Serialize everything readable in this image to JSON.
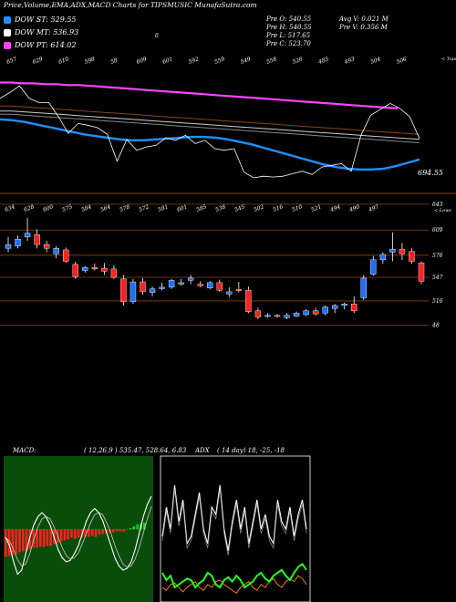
{
  "title": "Price,Volume,EMA,ADX,MACD Charts for TIPSMUSIC MunafaSutra.com",
  "legend": [
    {
      "label": "DOW ST: 529.55",
      "color": "#1e90ff"
    },
    {
      "label": "DOW MT: 536.93",
      "color": "#ffffff"
    },
    {
      "label": "DOW PT: 614.02",
      "color": "#ff44ff"
    }
  ],
  "ohlc_info": {
    "open": "Pre  O: 540.55",
    "high": "Pre  H: 540.55",
    "low": "Pre  L: 517.65",
    "close": "Pre  C: 523.70",
    "avg_volume": "Avg V: 0.021  M",
    "prev_volume": "Pre  V: 0.356  M"
  },
  "stray_mark": "6",
  "upper_labels": [
    "657",
    "629",
    "610",
    "598",
    "58",
    "609",
    "601",
    "592",
    "559",
    "549",
    "558",
    "526",
    "485",
    "493",
    "504",
    "506"
  ],
  "upper_right_label": "< Tops",
  "upper_price_tag": "694.55",
  "middle_labels": [
    "634",
    "628",
    "600",
    "575",
    "584",
    "564",
    "578",
    "572",
    "581",
    "601",
    "585",
    "538",
    "545",
    "502",
    "516",
    "510",
    "521",
    "494",
    "490",
    "497"
  ],
  "middle_right_label": "< Lows",
  "price_levels": [
    "643",
    "609",
    "576",
    "547",
    "516",
    "48"
  ],
  "macd": {
    "label": "MACD:",
    "params": "( 12,26,9 ) 535.47,  528.64,  6.83"
  },
  "adx": {
    "label": "ADX",
    "params": "( 14  day) 18,  -25,  -18"
  },
  "chart_data": {
    "type": "candlestick",
    "candles": [
      {
        "o": 585,
        "h": 600,
        "l": 580,
        "c": 590
      },
      {
        "o": 588,
        "h": 602,
        "l": 585,
        "c": 597
      },
      {
        "o": 600,
        "h": 625,
        "l": 595,
        "c": 605
      },
      {
        "o": 603,
        "h": 610,
        "l": 585,
        "c": 590
      },
      {
        "o": 590,
        "h": 595,
        "l": 580,
        "c": 585
      },
      {
        "o": 578,
        "h": 588,
        "l": 572,
        "c": 585
      },
      {
        "o": 583,
        "h": 586,
        "l": 566,
        "c": 568
      },
      {
        "o": 564,
        "h": 568,
        "l": 545,
        "c": 548
      },
      {
        "o": 556,
        "h": 562,
        "l": 553,
        "c": 560
      },
      {
        "o": 560,
        "h": 565,
        "l": 556,
        "c": 558
      },
      {
        "o": 559,
        "h": 566,
        "l": 550,
        "c": 555
      },
      {
        "o": 558,
        "h": 563,
        "l": 545,
        "c": 547
      },
      {
        "o": 545,
        "h": 550,
        "l": 510,
        "c": 515
      },
      {
        "o": 515,
        "h": 545,
        "l": 512,
        "c": 541
      },
      {
        "o": 541,
        "h": 546,
        "l": 524,
        "c": 528
      },
      {
        "o": 527,
        "h": 535,
        "l": 522,
        "c": 532
      },
      {
        "o": 532,
        "h": 540,
        "l": 530,
        "c": 534
      },
      {
        "o": 534,
        "h": 545,
        "l": 532,
        "c": 543
      },
      {
        "o": 538,
        "h": 545,
        "l": 536,
        "c": 540
      },
      {
        "o": 543,
        "h": 550,
        "l": 538,
        "c": 546
      },
      {
        "o": 538,
        "h": 542,
        "l": 534,
        "c": 536
      },
      {
        "o": 533,
        "h": 542,
        "l": 531,
        "c": 540
      },
      {
        "o": 540,
        "h": 544,
        "l": 528,
        "c": 530
      },
      {
        "o": 525,
        "h": 534,
        "l": 521,
        "c": 528
      },
      {
        "o": 531,
        "h": 541,
        "l": 527,
        "c": 530
      },
      {
        "o": 530,
        "h": 535,
        "l": 500,
        "c": 502
      },
      {
        "o": 503,
        "h": 507,
        "l": 492,
        "c": 495
      },
      {
        "o": 496,
        "h": 500,
        "l": 494,
        "c": 497
      },
      {
        "o": 497,
        "h": 499,
        "l": 494,
        "c": 496
      },
      {
        "o": 494,
        "h": 500,
        "l": 492,
        "c": 497
      },
      {
        "o": 496,
        "h": 502,
        "l": 495,
        "c": 500
      },
      {
        "o": 498,
        "h": 505,
        "l": 496,
        "c": 503
      },
      {
        "o": 503,
        "h": 507,
        "l": 497,
        "c": 499
      },
      {
        "o": 500,
        "h": 510,
        "l": 497,
        "c": 508
      },
      {
        "o": 506,
        "h": 512,
        "l": 500,
        "c": 510
      },
      {
        "o": 510,
        "h": 514,
        "l": 505,
        "c": 512
      },
      {
        "o": 512,
        "h": 522,
        "l": 500,
        "c": 503
      },
      {
        "o": 520,
        "h": 550,
        "l": 517,
        "c": 546
      },
      {
        "o": 551,
        "h": 575,
        "l": 549,
        "c": 570
      },
      {
        "o": 570,
        "h": 580,
        "l": 565,
        "c": 577
      },
      {
        "o": 580,
        "h": 606,
        "l": 568,
        "c": 584
      },
      {
        "o": 584,
        "h": 592,
        "l": 570,
        "c": 578
      },
      {
        "o": 581,
        "h": 585,
        "l": 565,
        "c": 568
      },
      {
        "o": 566,
        "h": 568,
        "l": 538,
        "c": 542
      }
    ],
    "price_axis": [
      480,
      650
    ],
    "upper_series": {
      "dow_pt": [
        614,
        614,
        613,
        613,
        612,
        612,
        611,
        611,
        610,
        609,
        608,
        607,
        606,
        605,
        604,
        603,
        602,
        601,
        600,
        599,
        598,
        597,
        596,
        595,
        594,
        593,
        592,
        591,
        590,
        589,
        588,
        587,
        586,
        585,
        584,
        583
      ],
      "dow_mt": [
        580,
        580,
        579,
        578,
        577,
        576,
        575,
        574,
        573,
        572,
        571,
        570,
        569,
        568,
        567,
        566,
        565,
        564,
        563,
        562,
        561,
        560,
        559,
        558,
        557,
        556,
        555,
        554,
        553,
        552,
        551,
        550,
        549,
        548,
        547,
        546
      ],
      "dow_st": [
        570,
        569,
        567,
        564,
        561,
        558,
        555,
        552,
        550,
        548,
        546,
        545,
        545,
        546,
        547,
        548,
        549,
        549,
        548,
        546,
        543,
        540,
        536,
        532,
        528,
        524,
        520,
        516,
        513,
        511,
        510,
        510,
        511,
        514,
        518,
        522
      ]
    },
    "macd_hist": [
      -30,
      -29,
      -28,
      -27,
      -25,
      -24,
      -23,
      -22,
      -20,
      -20,
      -19,
      -19,
      -18,
      -18,
      -16,
      -15,
      -13,
      -12,
      -11,
      -9,
      -10,
      -9,
      -9,
      -8,
      -8,
      -7,
      -8,
      -6,
      -5,
      -4,
      -4,
      -3,
      -2,
      -2,
      -2,
      0,
      1,
      3,
      5,
      6,
      7
    ],
    "macd_line": [
      -10,
      -20,
      -40,
      -55,
      -50,
      -30,
      -10,
      5,
      15,
      20,
      15,
      5,
      -10,
      -25,
      -35,
      -40,
      -38,
      -30,
      -20,
      -5,
      10,
      20,
      25,
      20,
      10,
      -5,
      -20,
      -35,
      -45,
      -50,
      -48,
      -40,
      -25,
      -5,
      15,
      30,
      40
    ],
    "adx_line": [
      0.55,
      0.35,
      0.5,
      0.2,
      0.45,
      0.3,
      0.6,
      0.55,
      0.4,
      0.25,
      0.5,
      0.6,
      0.35,
      0.4,
      0.2,
      0.5,
      0.65,
      0.45,
      0.3,
      0.5,
      0.35,
      0.6,
      0.45,
      0.3,
      0.5,
      0.4,
      0.55,
      0.6,
      0.3,
      0.45,
      0.5,
      0.35,
      0.55,
      0.4,
      0.3,
      0.5
    ],
    "adx_green": [
      0.8,
      0.85,
      0.82,
      0.9,
      0.88,
      0.86,
      0.84,
      0.85,
      0.9,
      0.87,
      0.85,
      0.8,
      0.82,
      0.88,
      0.9,
      0.85,
      0.83,
      0.86,
      0.82,
      0.85,
      0.9,
      0.88,
      0.86,
      0.82,
      0.8,
      0.84,
      0.86,
      0.82,
      0.8,
      0.78,
      0.82,
      0.85,
      0.8,
      0.76,
      0.74,
      0.78
    ],
    "adx_orange": [
      0.9,
      0.92,
      0.88,
      0.87,
      0.9,
      0.93,
      0.9,
      0.88,
      0.86,
      0.9,
      0.92,
      0.88,
      0.9,
      0.86,
      0.85,
      0.88,
      0.9,
      0.92,
      0.94,
      0.9,
      0.88,
      0.86,
      0.9,
      0.92,
      0.88,
      0.9,
      0.86,
      0.84,
      0.88,
      0.9,
      0.86,
      0.84,
      0.86,
      0.82,
      0.84,
      0.88
    ]
  }
}
